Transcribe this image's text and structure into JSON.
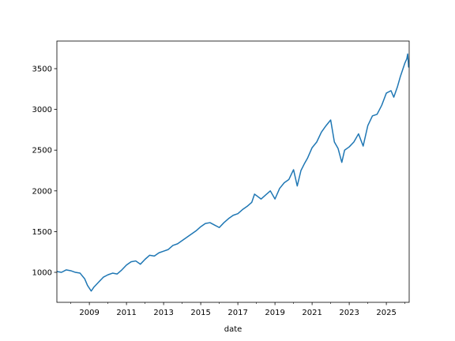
{
  "chart_data": {
    "type": "line",
    "xlabel": "date",
    "x": [
      2007.25,
      2007.5,
      2007.75,
      2008.0,
      2008.25,
      2008.5,
      2008.75,
      2008.9,
      2009.1,
      2009.25,
      2009.5,
      2009.75,
      2010.0,
      2010.25,
      2010.5,
      2010.75,
      2011.0,
      2011.25,
      2011.5,
      2011.75,
      2012.0,
      2012.25,
      2012.5,
      2012.75,
      2013.0,
      2013.25,
      2013.5,
      2013.75,
      2014.0,
      2014.25,
      2014.5,
      2014.75,
      2015.0,
      2015.25,
      2015.5,
      2015.75,
      2016.0,
      2016.25,
      2016.5,
      2016.75,
      2017.0,
      2017.25,
      2017.5,
      2017.75,
      2017.9,
      2018.25,
      2018.5,
      2018.75,
      2019.0,
      2019.25,
      2019.5,
      2019.75,
      2020.0,
      2020.2,
      2020.4,
      2020.6,
      2020.75,
      2021.0,
      2021.25,
      2021.5,
      2021.75,
      2022.0,
      2022.2,
      2022.4,
      2022.6,
      2022.75,
      2023.0,
      2023.25,
      2023.5,
      2023.75,
      2024.0,
      2024.25,
      2024.5,
      2024.75,
      2025.0,
      2025.25,
      2025.4,
      2025.6,
      2025.75,
      2026.0,
      2026.1,
      2026.15,
      2026.2,
      2026.23
    ],
    "series": [
      {
        "color": "#1f77b4",
        "values": [
          1010,
          1000,
          1030,
          1020,
          1000,
          990,
          920,
          840,
          770,
          820,
          880,
          940,
          970,
          990,
          980,
          1030,
          1090,
          1130,
          1140,
          1100,
          1160,
          1210,
          1200,
          1240,
          1260,
          1280,
          1330,
          1350,
          1390,
          1430,
          1470,
          1510,
          1560,
          1600,
          1610,
          1580,
          1550,
          1610,
          1660,
          1700,
          1720,
          1770,
          1810,
          1860,
          1960,
          1900,
          1950,
          2000,
          1900,
          2030,
          2100,
          2140,
          2260,
          2060,
          2250,
          2340,
          2400,
          2530,
          2600,
          2720,
          2800,
          2870,
          2600,
          2520,
          2350,
          2500,
          2540,
          2600,
          2700,
          2550,
          2800,
          2920,
          2940,
          3050,
          3200,
          3230,
          3150,
          3280,
          3400,
          3570,
          3620,
          3680,
          3520,
          3550
        ]
      }
    ],
    "xlim": [
      2007.25,
      2026.23
    ],
    "ylim": [
      632,
      3839
    ],
    "xticks": [
      2009,
      2011,
      2013,
      2015,
      2017,
      2019,
      2021,
      2023,
      2025
    ],
    "xminorticks": [
      2008,
      2010,
      2012,
      2014,
      2016,
      2018,
      2020,
      2022,
      2024,
      2026
    ],
    "yticks": [
      1000,
      1500,
      2000,
      2500,
      3000,
      3500
    ]
  }
}
